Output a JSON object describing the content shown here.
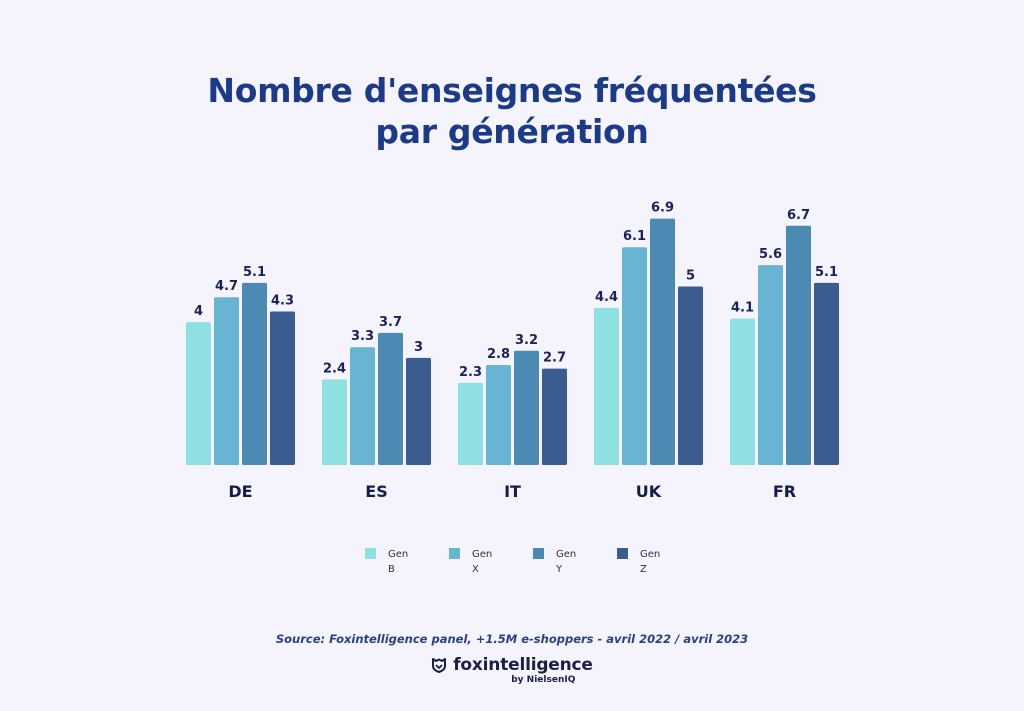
{
  "chart_data": {
    "type": "bar",
    "title": "Nombre d'enseignes fréquentées par génération",
    "title_lines": [
      "Nombre d'enseignes fréquentées",
      "par génération"
    ],
    "categories": [
      "DE",
      "ES",
      "IT",
      "UK",
      "FR"
    ],
    "series": [
      {
        "name": "Gen B",
        "legend_lines": [
          "Gen",
          "B"
        ],
        "color": "#8fe0e3",
        "values": [
          4,
          2.4,
          2.3,
          4.4,
          4.1
        ]
      },
      {
        "name": "Gen X",
        "legend_lines": [
          "Gen",
          "X"
        ],
        "color": "#67b5d2",
        "values": [
          4.7,
          3.3,
          2.8,
          6.1,
          5.6
        ]
      },
      {
        "name": "Gen Y",
        "legend_lines": [
          "Gen",
          "Y"
        ],
        "color": "#4a8ab3",
        "values": [
          5.1,
          3.7,
          3.2,
          6.9,
          6.7
        ]
      },
      {
        "name": "Gen Z",
        "legend_lines": [
          "Gen",
          "Z"
        ],
        "color": "#3a5c90",
        "values": [
          4.3,
          3,
          2.7,
          5,
          5.1
        ]
      }
    ],
    "data_labels": true,
    "xlabel": "",
    "ylabel": "",
    "ylim": [
      0,
      7
    ],
    "grid": false,
    "legend_position": "bottom-center"
  },
  "footer": {
    "source": "Source: Foxintelligence panel, +1.5M e-shoppers - avril 2022 / avril 2023",
    "logo_icon": "fox-shield-icon",
    "brand_name": "foxintelligence",
    "brand_sub": "by NielsenIQ"
  }
}
